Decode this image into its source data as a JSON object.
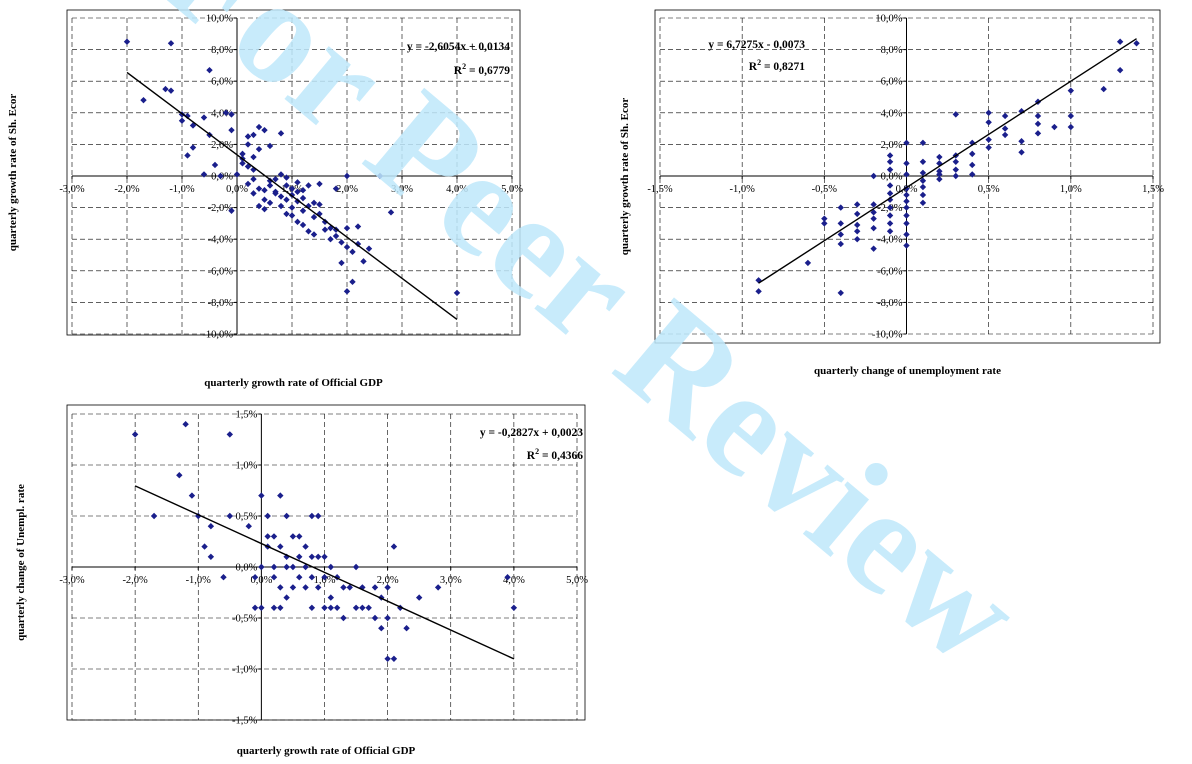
{
  "watermark": {
    "text": "For Peer Review",
    "color": "#bfe8fb"
  },
  "chart_data": [
    {
      "type": "scatter",
      "xlabel": "quarterly growth rate of Official GDP",
      "ylabel": "quarterly growth rate of Sh. Ecor",
      "xlim": [
        -0.03,
        0.05
      ],
      "ylim": [
        -0.1,
        0.1
      ],
      "x_ticks": [
        -0.03,
        -0.02,
        -0.01,
        0.0,
        0.01,
        0.02,
        0.03,
        0.04,
        0.05
      ],
      "x_tick_labels": [
        "-3,0%",
        "-2,0%",
        "-1,0%",
        "0,0%",
        "1,0%",
        "2,0%",
        "3,0%",
        "4,0%",
        "5,0%"
      ],
      "y_ticks": [
        -0.1,
        -0.08,
        -0.06,
        -0.04,
        -0.02,
        0.0,
        0.02,
        0.04,
        0.06,
        0.08,
        0.1
      ],
      "y_tick_labels": [
        "-10,0%",
        "-8,0%",
        "-6,0%",
        "-4,0%",
        "-2,0%",
        "0,0%",
        "2,0%",
        "4,0%",
        "6,0%",
        "8,0%",
        "10,0%"
      ],
      "grid": true,
      "marker_color": "#1a1f8c",
      "trendline": {
        "slope": -2.6054,
        "intercept": 0.0134,
        "x_range": [
          -0.02,
          0.04
        ]
      },
      "equation": "y = -2,6054x + 0,0134",
      "r2_label": "R",
      "r2_sup": "2",
      "r2_value": " = 0,6779",
      "points": [
        [
          -0.02,
          0.085
        ],
        [
          -0.012,
          0.084
        ],
        [
          -0.005,
          0.067
        ],
        [
          -0.017,
          0.048
        ],
        [
          -0.013,
          0.055
        ],
        [
          -0.012,
          0.054
        ],
        [
          -0.01,
          0.039
        ],
        [
          -0.009,
          0.038
        ],
        [
          -0.01,
          0.035
        ],
        [
          -0.008,
          0.032
        ],
        [
          -0.006,
          0.037
        ],
        [
          -0.005,
          0.026
        ],
        [
          -0.009,
          0.013
        ],
        [
          -0.008,
          0.018
        ],
        [
          -0.006,
          0.001
        ],
        [
          -0.004,
          0.007
        ],
        [
          -0.003,
          0.0
        ],
        [
          -0.002,
          0.04
        ],
        [
          -0.001,
          0.039
        ],
        [
          -0.001,
          0.029
        ],
        [
          0.0,
          0.001
        ],
        [
          0.001,
          0.014
        ],
        [
          0.002,
          0.02
        ],
        [
          0.002,
          0.025
        ],
        [
          0.003,
          0.026
        ],
        [
          0.004,
          0.031
        ],
        [
          0.005,
          0.029
        ],
        [
          0.003,
          0.012
        ],
        [
          0.002,
          0.006
        ],
        [
          0.001,
          0.008
        ],
        [
          0.003,
          -0.002
        ],
        [
          0.004,
          -0.008
        ],
        [
          0.005,
          -0.015
        ],
        [
          0.005,
          -0.021
        ],
        [
          0.006,
          -0.017
        ],
        [
          0.006,
          -0.003
        ],
        [
          0.007,
          -0.01
        ],
        [
          0.007,
          -0.011
        ],
        [
          0.008,
          -0.013
        ],
        [
          0.008,
          0.001
        ],
        [
          0.009,
          -0.006
        ],
        [
          0.009,
          -0.015
        ],
        [
          0.01,
          -0.02
        ],
        [
          0.01,
          -0.025
        ],
        [
          0.011,
          -0.016
        ],
        [
          0.011,
          -0.029
        ],
        [
          0.012,
          -0.031
        ],
        [
          0.012,
          -0.014
        ],
        [
          0.013,
          -0.006
        ],
        [
          0.013,
          -0.035
        ],
        [
          0.014,
          -0.037
        ],
        [
          0.015,
          -0.024
        ],
        [
          0.015,
          -0.018
        ],
        [
          0.016,
          -0.029
        ],
        [
          0.017,
          -0.033
        ],
        [
          0.018,
          -0.034
        ],
        [
          0.018,
          -0.038
        ],
        [
          0.019,
          -0.042
        ],
        [
          0.02,
          -0.033
        ],
        [
          0.02,
          -0.045
        ],
        [
          0.019,
          -0.055
        ],
        [
          0.021,
          -0.048
        ],
        [
          0.022,
          -0.032
        ],
        [
          0.023,
          -0.054
        ],
        [
          0.024,
          -0.046
        ],
        [
          0.02,
          -0.073
        ],
        [
          0.021,
          -0.067
        ],
        [
          0.02,
          0.0
        ],
        [
          0.026,
          0.0
        ],
        [
          0.028,
          -0.023
        ],
        [
          0.04,
          -0.074
        ],
        [
          0.008,
          0.027
        ],
        [
          0.006,
          0.019
        ],
        [
          0.004,
          0.017
        ],
        [
          0.003,
          0.004
        ],
        [
          0.001,
          0.011
        ],
        [
          0.002,
          -0.005
        ],
        [
          0.007,
          -0.002
        ],
        [
          0.009,
          -0.001
        ],
        [
          0.01,
          -0.008
        ],
        [
          0.011,
          -0.01
        ],
        [
          0.012,
          -0.022
        ],
        [
          0.014,
          -0.026
        ],
        [
          0.006,
          -0.006
        ],
        [
          0.005,
          -0.009
        ],
        [
          0.004,
          -0.019
        ],
        [
          0.003,
          -0.011
        ],
        [
          0.008,
          -0.019
        ],
        [
          0.009,
          -0.024
        ],
        [
          0.012,
          -0.009
        ],
        [
          0.013,
          -0.019
        ],
        [
          0.016,
          -0.034
        ],
        [
          0.017,
          -0.04
        ],
        [
          0.014,
          -0.017
        ],
        [
          0.01,
          -0.012
        ],
        [
          -0.001,
          -0.022
        ],
        [
          0.015,
          -0.005
        ],
        [
          0.018,
          -0.008
        ],
        [
          0.022,
          -0.043
        ],
        [
          0.011,
          -0.004
        ]
      ]
    },
    {
      "type": "scatter",
      "xlabel": "quarterly change of unemployment rate",
      "ylabel": "quarterly growth rate of Sh. Ecor",
      "xlim": [
        -0.015,
        0.015
      ],
      "ylim": [
        -0.1,
        0.1
      ],
      "x_ticks": [
        -0.015,
        -0.01,
        -0.005,
        0.0,
        0.005,
        0.01,
        0.015
      ],
      "x_tick_labels": [
        "-1,5%",
        "-1,0%",
        "-0,5%",
        "0,0%",
        "0,5%",
        "1,0%",
        "1,5%"
      ],
      "y_ticks": [
        -0.1,
        -0.08,
        -0.06,
        -0.04,
        -0.02,
        0.0,
        0.02,
        0.04,
        0.06,
        0.08,
        0.1
      ],
      "y_tick_labels": [
        "-10,0%",
        "-8,0%",
        "-6,0%",
        "-4,0%",
        "-2,0%",
        "0,0%",
        "2,0%",
        "4,0%",
        "6,0%",
        "8,0%",
        "10,0%"
      ],
      "grid": true,
      "marker_color": "#1a1f8c",
      "trendline": {
        "slope": 6.7275,
        "intercept": -0.0073,
        "x_range": [
          -0.009,
          0.014
        ]
      },
      "equation": "y = 6,7275x - 0,0073",
      "r2_label": "R",
      "r2_sup": "2",
      "r2_value": " = 0,8271",
      "points": [
        [
          -0.009,
          -0.066
        ],
        [
          -0.009,
          -0.073
        ],
        [
          -0.006,
          -0.055
        ],
        [
          -0.005,
          -0.03
        ],
        [
          -0.005,
          -0.027
        ],
        [
          -0.004,
          -0.02
        ],
        [
          -0.004,
          -0.03
        ],
        [
          -0.004,
          -0.037
        ],
        [
          -0.004,
          -0.043
        ],
        [
          -0.004,
          -0.074
        ],
        [
          -0.003,
          -0.018
        ],
        [
          -0.003,
          -0.024
        ],
        [
          -0.003,
          -0.031
        ],
        [
          -0.003,
          -0.035
        ],
        [
          -0.003,
          -0.04
        ],
        [
          -0.002,
          -0.018
        ],
        [
          -0.002,
          -0.023
        ],
        [
          -0.002,
          -0.027
        ],
        [
          -0.002,
          -0.033
        ],
        [
          -0.002,
          -0.046
        ],
        [
          -0.002,
          0.0
        ],
        [
          -0.001,
          -0.006
        ],
        [
          -0.001,
          -0.011
        ],
        [
          -0.001,
          -0.015
        ],
        [
          -0.001,
          -0.02
        ],
        [
          -0.001,
          -0.025
        ],
        [
          -0.001,
          -0.03
        ],
        [
          -0.001,
          -0.035
        ],
        [
          -0.001,
          0.004
        ],
        [
          -0.001,
          0.009
        ],
        [
          0.0,
          -0.008
        ],
        [
          0.0,
          -0.012
        ],
        [
          0.0,
          -0.016
        ],
        [
          0.0,
          -0.02
        ],
        [
          0.0,
          -0.025
        ],
        [
          0.0,
          -0.03
        ],
        [
          0.0,
          -0.037
        ],
        [
          0.0,
          -0.044
        ],
        [
          0.0,
          0.001
        ],
        [
          0.0,
          0.008
        ],
        [
          0.001,
          -0.003
        ],
        [
          0.001,
          -0.007
        ],
        [
          0.001,
          -0.012
        ],
        [
          0.001,
          -0.017
        ],
        [
          0.001,
          0.002
        ],
        [
          0.001,
          0.009
        ],
        [
          0.001,
          0.021
        ],
        [
          0.002,
          -0.002
        ],
        [
          0.002,
          0.003
        ],
        [
          0.002,
          0.008
        ],
        [
          0.002,
          0.012
        ],
        [
          0.003,
          0.0
        ],
        [
          0.003,
          0.004
        ],
        [
          0.003,
          0.009
        ],
        [
          0.003,
          0.013
        ],
        [
          0.003,
          0.039
        ],
        [
          0.004,
          0.007
        ],
        [
          0.004,
          0.014
        ],
        [
          0.004,
          0.021
        ],
        [
          0.005,
          0.018
        ],
        [
          0.005,
          0.023
        ],
        [
          0.005,
          0.034
        ],
        [
          0.005,
          0.04
        ],
        [
          0.006,
          0.026
        ],
        [
          0.006,
          0.03
        ],
        [
          0.006,
          0.038
        ],
        [
          0.007,
          0.015
        ],
        [
          0.007,
          0.022
        ],
        [
          0.007,
          0.041
        ],
        [
          0.008,
          0.047
        ],
        [
          0.008,
          0.027
        ],
        [
          0.008,
          0.033
        ],
        [
          0.008,
          0.038
        ],
        [
          0.009,
          0.031
        ],
        [
          0.01,
          0.031
        ],
        [
          0.01,
          0.038
        ],
        [
          0.01,
          0.054
        ],
        [
          0.012,
          0.055
        ],
        [
          0.013,
          0.067
        ],
        [
          0.013,
          0.085
        ],
        [
          0.014,
          0.084
        ],
        [
          0.0,
          0.021
        ],
        [
          -0.001,
          0.013
        ],
        [
          0.002,
          0.001
        ],
        [
          0.004,
          0.001
        ]
      ]
    },
    {
      "type": "scatter",
      "xlabel": "quarterly growth rate of Official GDP",
      "ylabel": "quarterly change of Unempl. rate",
      "xlim": [
        -0.03,
        0.05
      ],
      "ylim": [
        -0.015,
        0.015
      ],
      "x_ticks": [
        -0.03,
        -0.02,
        -0.01,
        0.0,
        0.01,
        0.02,
        0.03,
        0.04,
        0.05
      ],
      "x_tick_labels": [
        "-3,0%",
        "-2,0%",
        "-1,0%",
        "0,0%",
        "1,0%",
        "2,0%",
        "3,0%",
        "4,0%",
        "5,0%"
      ],
      "y_ticks": [
        -0.015,
        -0.01,
        -0.005,
        0.0,
        0.005,
        0.01,
        0.015
      ],
      "y_tick_labels": [
        "-1,5%",
        "-1,0%",
        "-0,5%",
        "0,0%",
        "0,5%",
        "1,0%",
        "1,5%"
      ],
      "grid": true,
      "marker_color": "#1a1f8c",
      "trendline": {
        "slope": -0.2827,
        "intercept": 0.0023,
        "x_range": [
          -0.02,
          0.04
        ]
      },
      "equation": "y = -0,2827x + 0,0023",
      "r2_label": "R",
      "r2_sup": "2",
      "r2_value": " = 0,4366",
      "points": [
        [
          -0.02,
          0.013
        ],
        [
          -0.012,
          0.014
        ],
        [
          -0.005,
          0.013
        ],
        [
          -0.013,
          0.009
        ],
        [
          -0.017,
          0.005
        ],
        [
          -0.011,
          0.007
        ],
        [
          -0.01,
          0.005
        ],
        [
          -0.009,
          0.002
        ],
        [
          -0.008,
          0.004
        ],
        [
          -0.008,
          0.001
        ],
        [
          -0.006,
          -0.001
        ],
        [
          -0.005,
          0.005
        ],
        [
          -0.002,
          0.004
        ],
        [
          -0.001,
          -0.001
        ],
        [
          -0.001,
          -0.004
        ],
        [
          0.0,
          0.007
        ],
        [
          0.0,
          0.0
        ],
        [
          0.0,
          -0.004
        ],
        [
          0.001,
          0.005
        ],
        [
          0.001,
          0.002
        ],
        [
          0.002,
          0.003
        ],
        [
          0.002,
          0.0
        ],
        [
          0.002,
          -0.001
        ],
        [
          0.003,
          0.007
        ],
        [
          0.003,
          0.002
        ],
        [
          0.003,
          -0.002
        ],
        [
          0.004,
          0.005
        ],
        [
          0.004,
          0.001
        ],
        [
          0.004,
          -0.003
        ],
        [
          0.005,
          0.003
        ],
        [
          0.005,
          0.0
        ],
        [
          0.005,
          -0.002
        ],
        [
          0.006,
          0.001
        ],
        [
          0.006,
          -0.001
        ],
        [
          0.007,
          0.002
        ],
        [
          0.007,
          0.0
        ],
        [
          0.007,
          -0.002
        ],
        [
          0.008,
          0.005
        ],
        [
          0.008,
          0.001
        ],
        [
          0.008,
          -0.001
        ],
        [
          0.009,
          0.005
        ],
        [
          0.009,
          0.001
        ],
        [
          0.009,
          -0.002
        ],
        [
          0.01,
          0.001
        ],
        [
          0.01,
          -0.001
        ],
        [
          0.01,
          -0.004
        ],
        [
          0.011,
          0.0
        ],
        [
          0.011,
          -0.004
        ],
        [
          0.012,
          -0.001
        ],
        [
          0.012,
          -0.004
        ],
        [
          0.013,
          -0.002
        ],
        [
          0.013,
          -0.005
        ],
        [
          0.014,
          -0.002
        ],
        [
          0.015,
          0.0
        ],
        [
          0.015,
          -0.004
        ],
        [
          0.016,
          -0.002
        ],
        [
          0.017,
          -0.004
        ],
        [
          0.018,
          -0.002
        ],
        [
          0.018,
          -0.005
        ],
        [
          0.019,
          -0.003
        ],
        [
          0.019,
          -0.006
        ],
        [
          0.02,
          -0.002
        ],
        [
          0.02,
          -0.005
        ],
        [
          0.02,
          -0.009
        ],
        [
          0.021,
          -0.009
        ],
        [
          0.021,
          0.002
        ],
        [
          0.022,
          -0.004
        ],
        [
          0.023,
          -0.006
        ],
        [
          0.025,
          -0.003
        ],
        [
          0.028,
          -0.002
        ],
        [
          0.04,
          -0.004
        ],
        [
          0.039,
          -0.001
        ],
        [
          0.006,
          0.003
        ],
        [
          0.004,
          0.0
        ],
        [
          0.003,
          -0.004
        ],
        [
          0.001,
          0.003
        ],
        [
          0.002,
          -0.004
        ],
        [
          0.008,
          -0.004
        ],
        [
          0.011,
          -0.003
        ],
        [
          0.016,
          -0.004
        ]
      ]
    }
  ]
}
